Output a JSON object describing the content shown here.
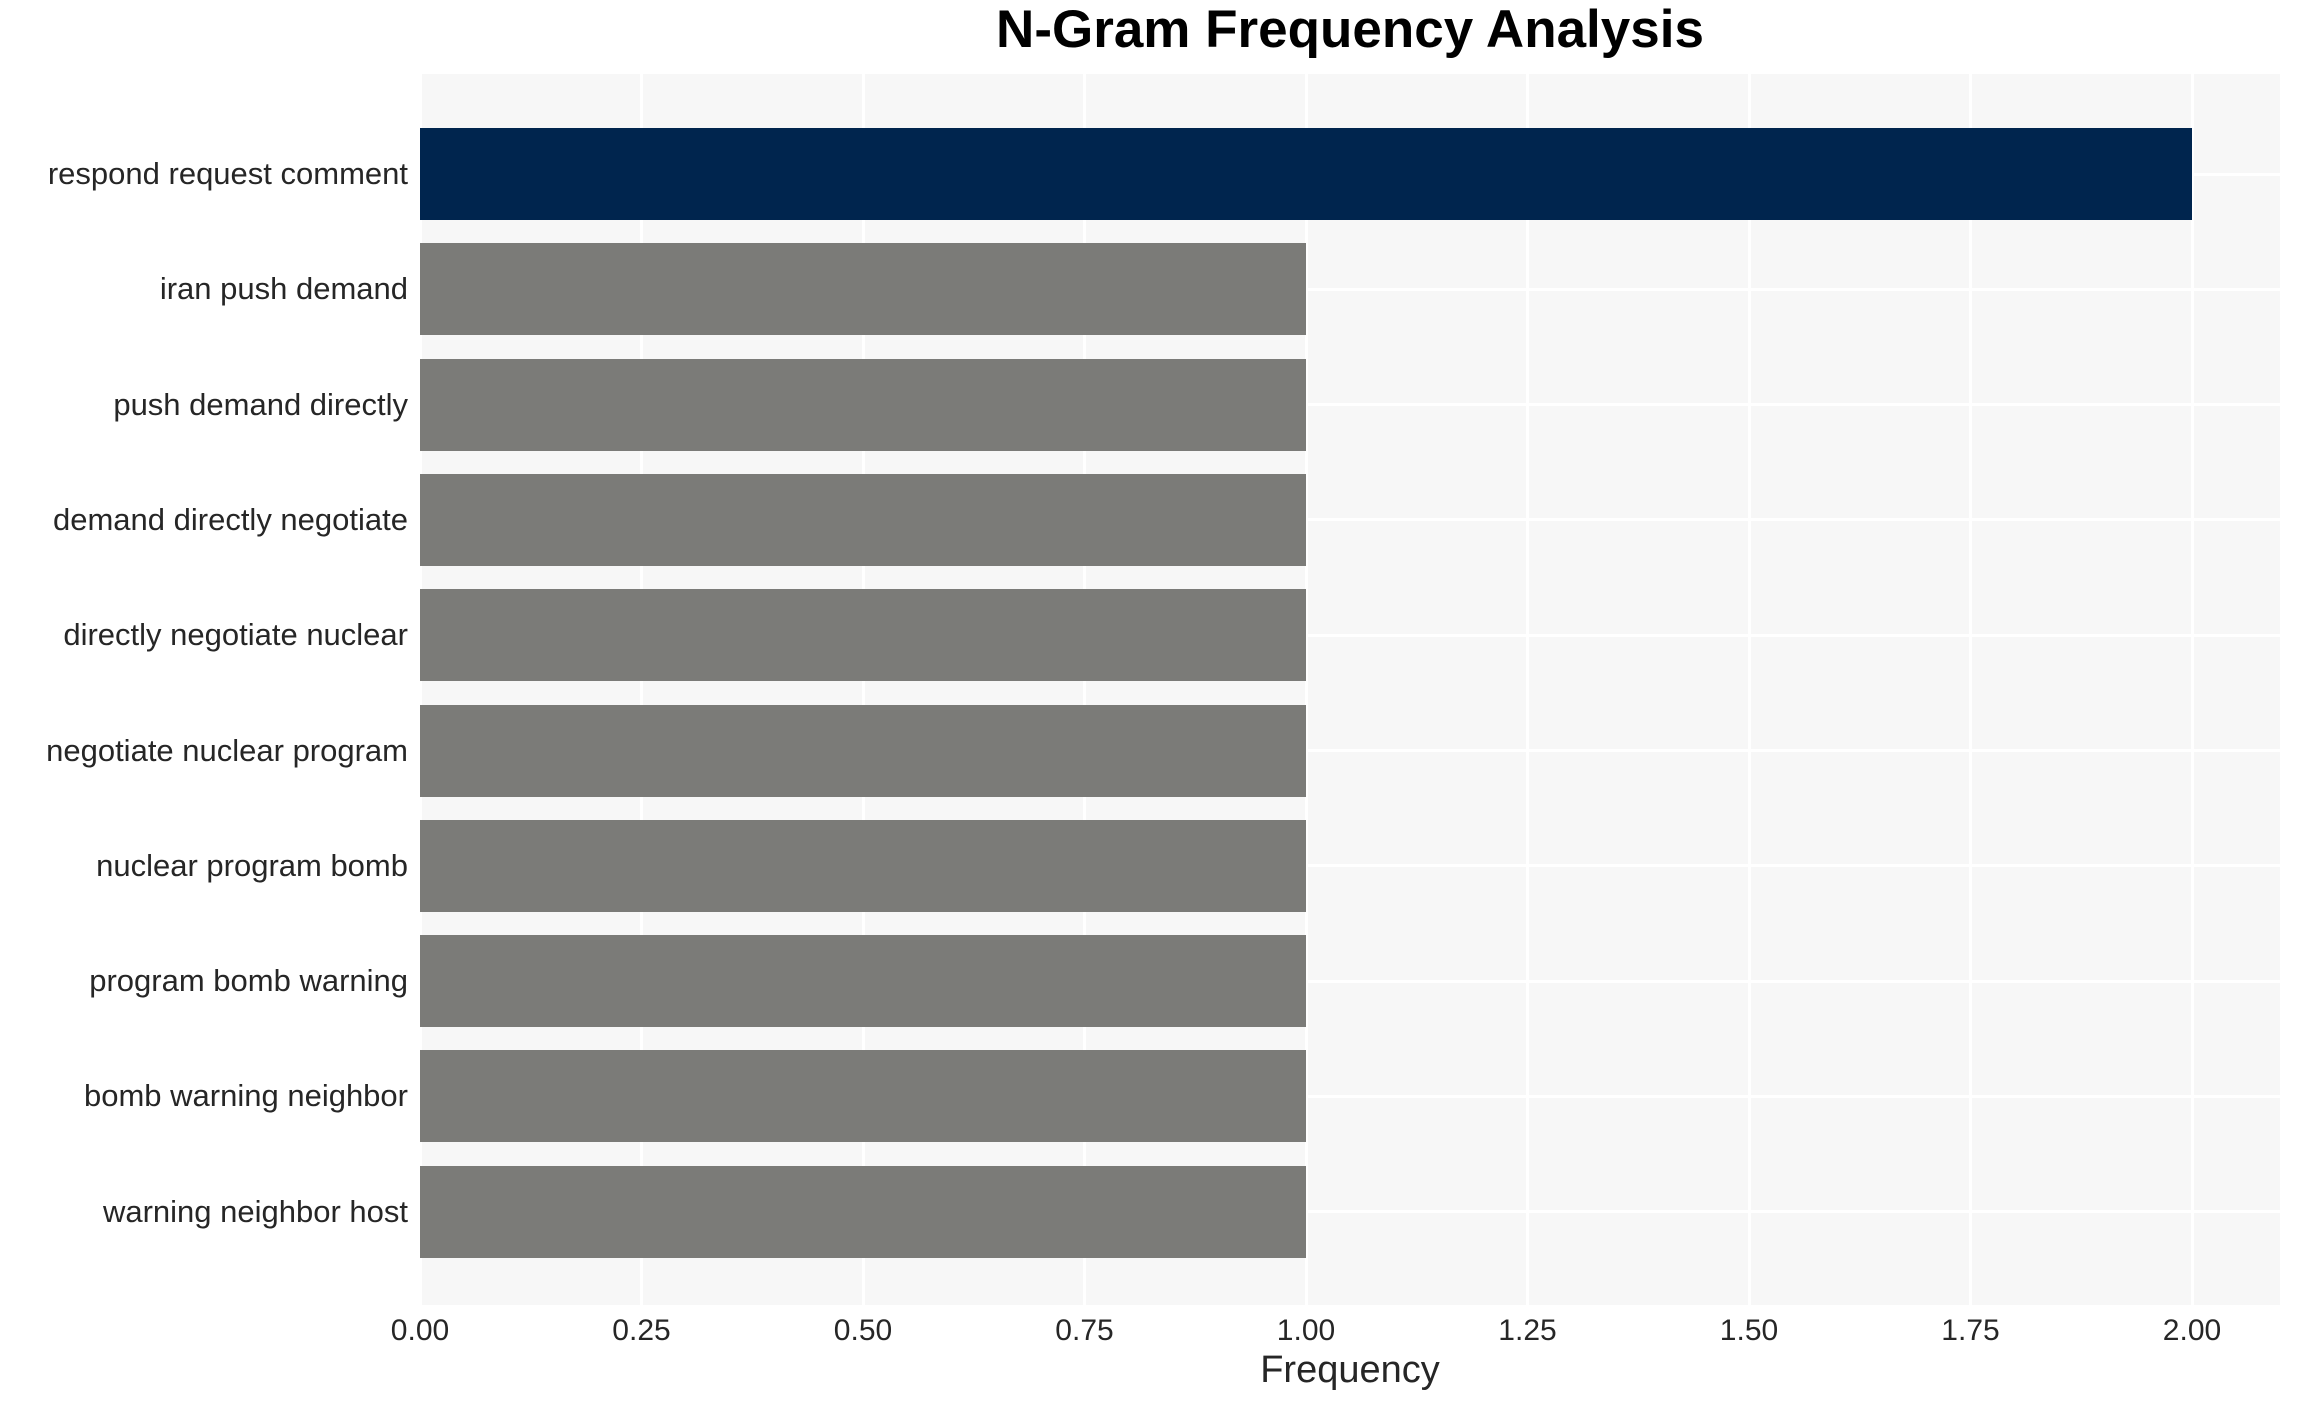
{
  "chart_data": {
    "type": "bar",
    "orientation": "horizontal",
    "title": "N-Gram Frequency Analysis",
    "xlabel": "Frequency",
    "ylabel": "",
    "categories": [
      "respond request comment",
      "iran push demand",
      "push demand directly",
      "demand directly negotiate",
      "directly negotiate nuclear",
      "negotiate nuclear program",
      "nuclear program bomb",
      "program bomb warning",
      "bomb warning neighbor",
      "warning neighbor host"
    ],
    "values": [
      2,
      1,
      1,
      1,
      1,
      1,
      1,
      1,
      1,
      1
    ],
    "xlim": [
      0,
      2.1
    ],
    "xticks": [
      0,
      0.25,
      0.5,
      0.75,
      1.0,
      1.25,
      1.5,
      1.75,
      2.0
    ],
    "xtick_labels": [
      "0.00",
      "0.25",
      "0.50",
      "0.75",
      "1.00",
      "1.25",
      "1.50",
      "1.75",
      "2.00"
    ],
    "grid": true,
    "legend": false,
    "bar_colors": [
      "#00254e",
      "#7b7b78",
      "#7b7b78",
      "#7b7b78",
      "#7b7b78",
      "#7b7b78",
      "#7b7b78",
      "#7b7b78",
      "#7b7b78",
      "#7b7b78"
    ],
    "colors": {
      "highlight_bar": "#00254e",
      "default_bar": "#7b7b78",
      "plot_background": "#f7f7f7",
      "gridline": "#ffffff",
      "figure_background": "#ffffff",
      "tick_text": "#262626",
      "title_text": "#000000"
    }
  }
}
